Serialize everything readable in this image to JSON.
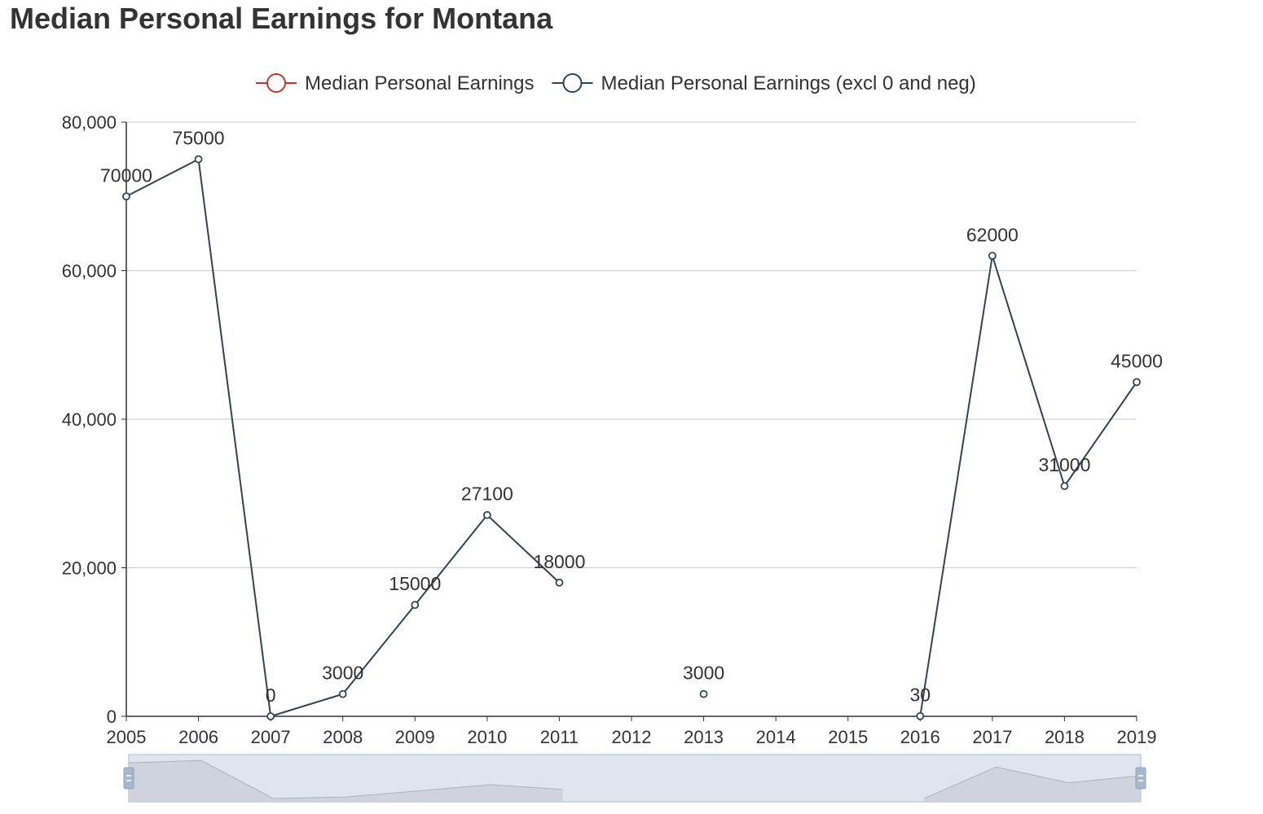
{
  "title": "Median Personal Earnings for Montana",
  "chart_data": {
    "type": "line",
    "title": "Median Personal Earnings for Montana",
    "xlabel": "",
    "ylabel": "",
    "x": [
      "2005",
      "2006",
      "2007",
      "2008",
      "2009",
      "2010",
      "2011",
      "2012",
      "2013",
      "2014",
      "2015",
      "2016",
      "2017",
      "2018",
      "2019"
    ],
    "ylim": [
      0,
      80000
    ],
    "yticks": [
      0,
      20000,
      40000,
      60000,
      80000
    ],
    "ytick_labels": [
      "0",
      "20,000",
      "40,000",
      "60,000",
      "80,000"
    ],
    "grid": true,
    "legend_position": "top-center",
    "series": [
      {
        "name": "Median Personal Earnings",
        "color": "#c23531",
        "values": [
          null,
          null,
          null,
          null,
          null,
          null,
          null,
          null,
          null,
          null,
          null,
          null,
          null,
          null,
          null
        ]
      },
      {
        "name": "Median Personal Earnings (excl 0 and neg)",
        "color": "#2f4554",
        "values": [
          70000,
          75000,
          0,
          3000,
          15000,
          27100,
          18000,
          null,
          3000,
          null,
          null,
          30,
          62000,
          31000,
          45000
        ],
        "labels": [
          "70000",
          "75000",
          "0",
          "3000",
          "15000",
          "27100",
          "18000",
          "",
          "3000",
          "",
          "",
          "30",
          "62000",
          "31000",
          "45000"
        ]
      }
    ]
  }
}
